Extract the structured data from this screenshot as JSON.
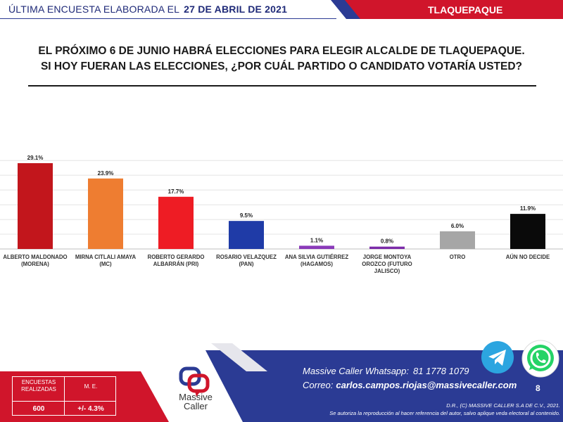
{
  "header": {
    "left_text": "ÚLTIMA ENCUESTA ELABORADA EL",
    "date": "27 DE ABRIL DE 2021",
    "location": "TLAQUEPAQUE"
  },
  "title": {
    "line1": "EL PRÓXIMO 6 DE JUNIO HABRÁ ELECCIONES PARA ELEGIR ALCALDE DE TLAQUEPAQUE.",
    "line2": "SI HOY FUERAN LAS ELECCIONES, ¿POR CUÁL PARTIDO O CANDIDATO VOTARÍA USTED?"
  },
  "chart_data": {
    "type": "bar",
    "title": "",
    "xlabel": "",
    "ylabel": "",
    "ylim": [
      0,
      31
    ],
    "grid": true,
    "categories": [
      [
        "ALBERTO MALDONADO",
        "(MORENA)"
      ],
      [
        "MIRNA CITLALI AMAYA",
        "(MC)"
      ],
      [
        "ROBERTO GERARDO",
        "ALBARRÁN (PRI)"
      ],
      [
        "ROSARIO VELAZQUEZ",
        "(PAN)"
      ],
      [
        "ANA SILVIA GUTIÉRREZ",
        "(HAGAMOS)"
      ],
      [
        "JORGE MONTOYA",
        "OROZCO (FUTURO",
        "JALISCO)"
      ],
      [
        "OTRO"
      ],
      [
        "AÚN NO DECIDE"
      ]
    ],
    "values": [
      29.1,
      23.9,
      17.7,
      9.5,
      1.1,
      0.8,
      6.0,
      11.9
    ],
    "value_labels": [
      "29.1%",
      "23.9%",
      "17.7%",
      "9.5%",
      "1.1%",
      "0.8%",
      "6.0%",
      "11.9%"
    ],
    "colors": [
      "#c2161c",
      "#ee7d31",
      "#ee1c24",
      "#1f3ba7",
      "#8a3ab9",
      "#7b2ba8",
      "#a6a6a6",
      "#0a0a0a"
    ]
  },
  "stats": {
    "header1": "ENCUESTAS REALIZADAS",
    "header2": "M. E.",
    "value1": "600",
    "value2": "+/- 4.3%"
  },
  "brand": {
    "line1": "Massive",
    "line2": "Caller"
  },
  "contact": {
    "whatsapp_label": "Massive Caller Whatsapp:",
    "whatsapp_number": "81 1778 1079",
    "email_label": "Correo:",
    "email": "carlos.campos.riojas@massivecaller.com"
  },
  "page_number": "8",
  "rights": {
    "line1": "D.R., (C) MASSIVE CALLER S.A DE C.V., 2021.",
    "line2": "Se autoriza la reproducción al hacer referencia del autor, salvo aplique veda electoral al contenido."
  },
  "icons": {
    "telegram": "telegram-icon",
    "whatsapp": "whatsapp-icon"
  }
}
